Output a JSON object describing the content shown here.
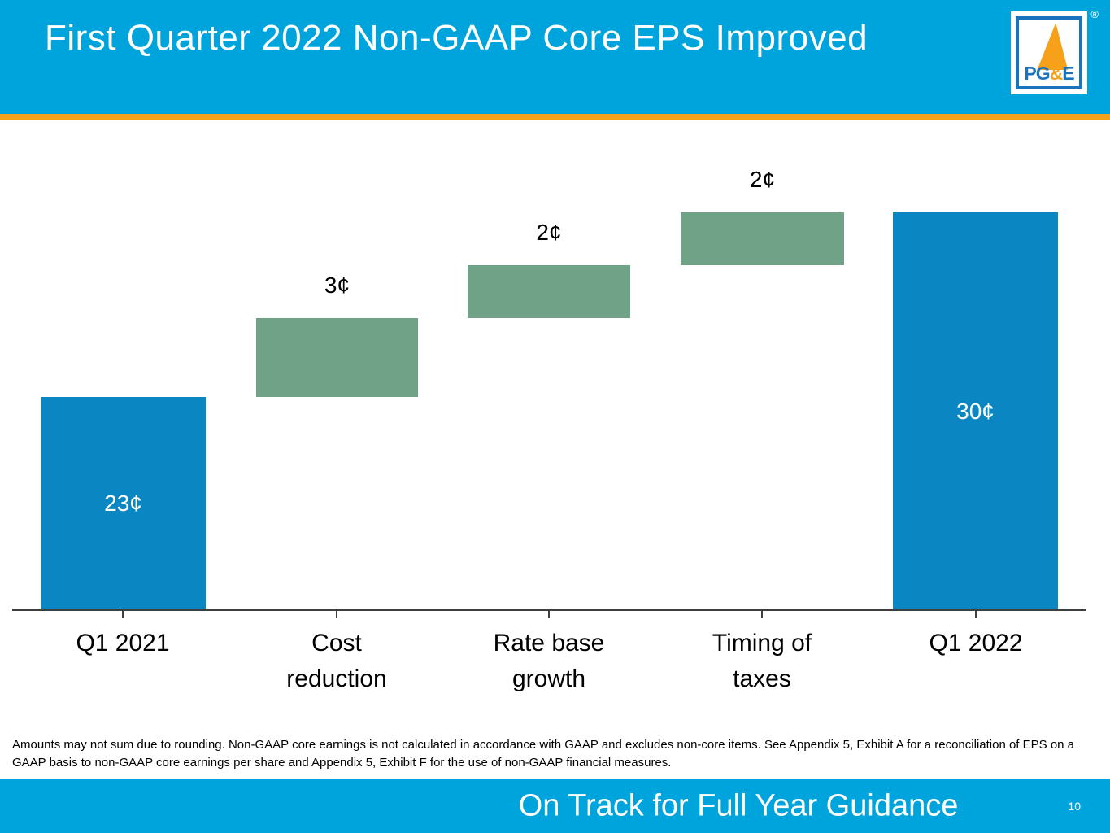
{
  "slide": {
    "title": "First Quarter 2022 Non-GAAP Core EPS Improved",
    "logo": {
      "brand_p": "PG",
      "brand_amp": "&",
      "brand_e": "E",
      "registered": "®"
    },
    "footnote": "Amounts may not sum due to rounding. Non-GAAP core earnings is not calculated in accordance with GAAP and excludes non-core items. See Appendix 5, Exhibit A for a reconciliation of EPS on a GAAP basis to non-GAAP core earnings per share and Appendix 5, Exhibit F for the use of non-GAAP financial measures.",
    "banner": "On Track for Full Year Guidance",
    "page_number": "10"
  },
  "chart_data": {
    "type": "bar",
    "subtype": "waterfall",
    "title": "First Quarter 2022 Non-GAAP Core EPS Improved",
    "unit": "¢ per share",
    "categories": [
      "Q1 2021",
      "Cost reduction",
      "Rate base growth",
      "Timing of taxes",
      "Q1 2022"
    ],
    "values": [
      23,
      3,
      2,
      2,
      30
    ],
    "value_labels": [
      "23¢",
      "3¢",
      "2¢",
      "2¢",
      "30¢"
    ],
    "bar_roles": [
      "total",
      "increase",
      "increase",
      "increase",
      "total"
    ],
    "cumulative_start": [
      0,
      23,
      26,
      28,
      0
    ],
    "cumulative_end": [
      23,
      26,
      28,
      30,
      30
    ],
    "ylim": [
      0,
      32
    ],
    "grid": false,
    "legend": false,
    "colors": {
      "total": "#0A87C2",
      "increase": "#6FA287",
      "header": "#00A4DC",
      "accent": "#F7A11A"
    }
  }
}
